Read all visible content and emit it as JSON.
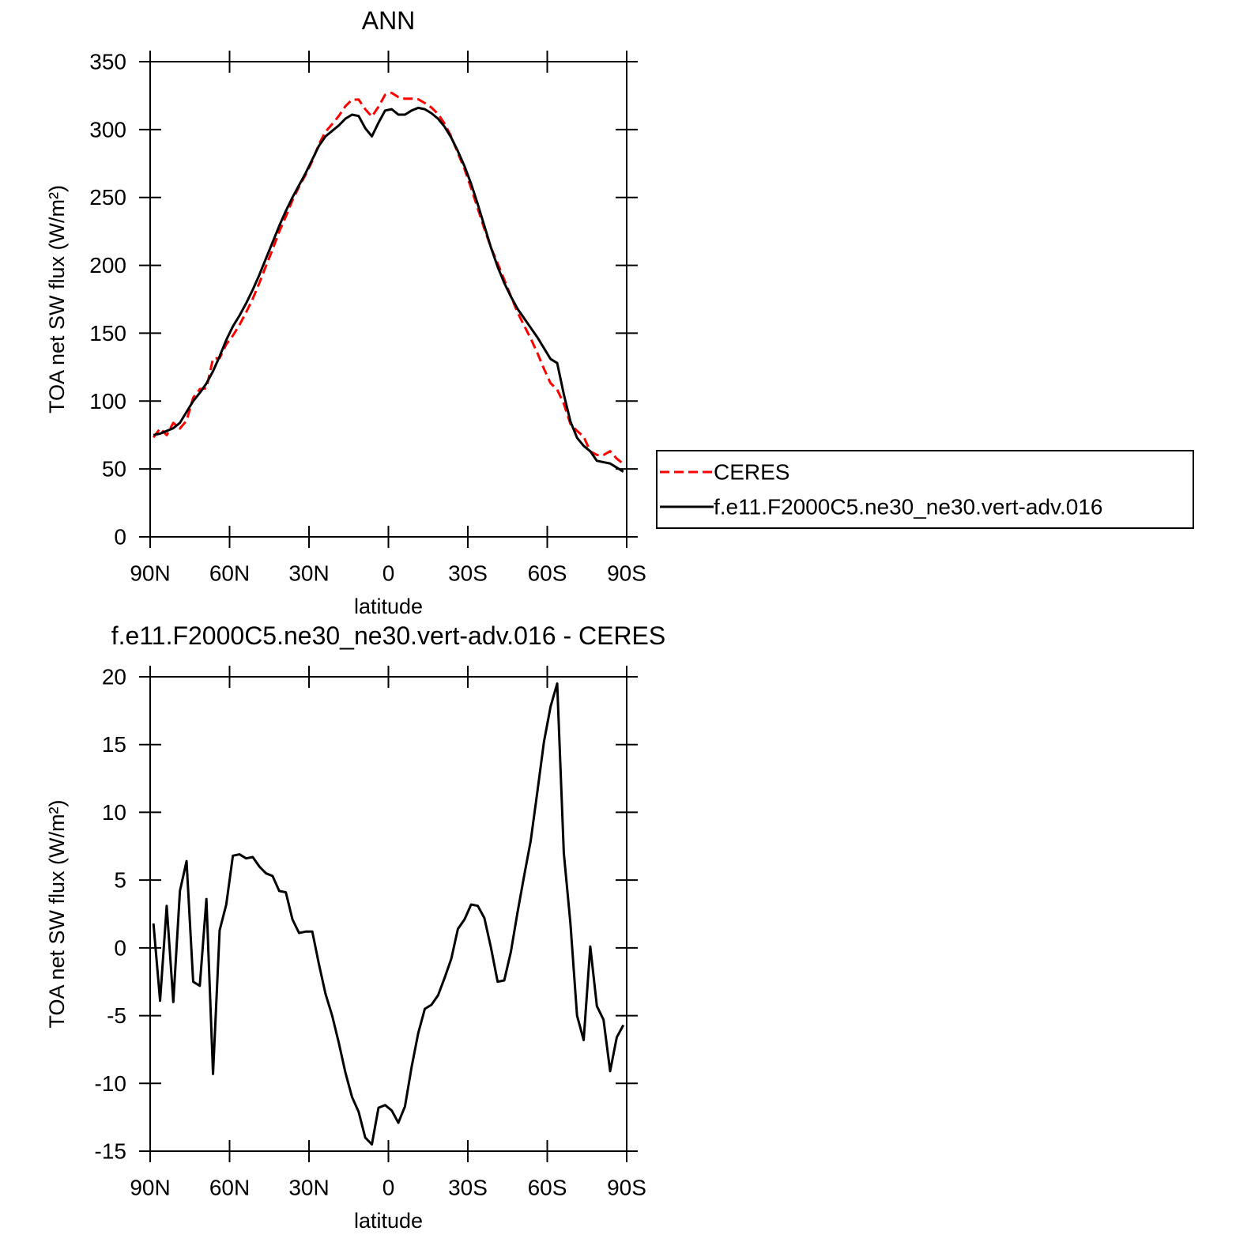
{
  "chart_data": [
    {
      "type": "line",
      "title": "ANN",
      "xlabel": "latitude",
      "ylabel": "TOA net SW flux (W/m²)",
      "x": [
        88.75,
        86.25,
        83.75,
        81.25,
        78.75,
        76.25,
        73.75,
        71.25,
        68.75,
        66.25,
        63.75,
        61.25,
        58.75,
        56.25,
        53.75,
        51.25,
        48.75,
        46.25,
        43.75,
        41.25,
        38.75,
        36.25,
        33.75,
        31.25,
        28.75,
        26.25,
        23.75,
        21.25,
        18.75,
        16.25,
        13.75,
        11.25,
        8.75,
        6.25,
        3.75,
        1.25,
        -1.25,
        -3.75,
        -6.25,
        -8.75,
        -11.25,
        -13.75,
        -16.25,
        -18.75,
        -21.25,
        -23.75,
        -26.25,
        -28.75,
        -31.25,
        -33.75,
        -36.25,
        -38.75,
        -41.25,
        -43.75,
        -46.25,
        -48.75,
        -51.25,
        -53.75,
        -56.25,
        -58.75,
        -61.25,
        -63.75,
        -66.25,
        -68.75,
        -71.25,
        -73.75,
        -76.25,
        -78.75,
        -81.25,
        -83.75,
        -86.25,
        -88.75
      ],
      "series": [
        {
          "name": "CERES",
          "color": "#ff0000",
          "style": "dashed",
          "values": [
            73.2,
            79.9,
            74.9,
            84.0,
            79.8,
            85.6,
            102.5,
            108.8,
            109.4,
            131.3,
            131.7,
            141.8,
            148.2,
            156.1,
            165.4,
            175.3,
            187.0,
            199.5,
            211.7,
            224.8,
            235.9,
            247.9,
            257.9,
            266.8,
            276.8,
            289.2,
            298.4,
            304.0,
            310.0,
            317.2,
            322.0,
            322.1,
            315.0,
            309.5,
            316.8,
            325.6,
            327.0,
            323.9,
            322.7,
            322.8,
            322.3,
            319.5,
            316.2,
            311.5,
            304.2,
            294.8,
            282.6,
            270.9,
            256.8,
            241.9,
            226.8,
            213.0,
            201.5,
            189.4,
            177.3,
            165.4,
            155.7,
            146.1,
            135.5,
            123.8,
            113.2,
            108.5,
            98.0,
            83.2,
            78.0,
            73.8,
            62.9,
            60.3,
            60.3,
            63.1,
            57.6,
            53.7
          ]
        },
        {
          "name": "f.e11.F2000C5.ne30_ne30.vert-adv.016",
          "color": "#000000",
          "style": "solid",
          "values": [
            75,
            76,
            78,
            80,
            84,
            92,
            100,
            106,
            113,
            122,
            133,
            145,
            155,
            163,
            172,
            182,
            193,
            205,
            217,
            229,
            240,
            250,
            259,
            268,
            278,
            288,
            295,
            299,
            303,
            308,
            311,
            310,
            301,
            295,
            305,
            314,
            315,
            311,
            311,
            314,
            316,
            315,
            312,
            308,
            302,
            294,
            284,
            273,
            260,
            245,
            229,
            213,
            199,
            187,
            177,
            168,
            161,
            154,
            147,
            139,
            131,
            128,
            105,
            85,
            73,
            67,
            63,
            56,
            55,
            54,
            51,
            48
          ]
        }
      ],
      "xlim": [
        90,
        -90
      ],
      "xticks": [
        {
          "value": 90,
          "label": "90N"
        },
        {
          "value": 60,
          "label": "60N"
        },
        {
          "value": 30,
          "label": "30N"
        },
        0,
        {
          "value": -30,
          "label": "30S"
        },
        {
          "value": -60,
          "label": "60S"
        },
        {
          "value": -90,
          "label": "90S"
        }
      ],
      "ylim": [
        0,
        350
      ],
      "yticks": [
        0,
        50,
        100,
        150,
        200,
        250,
        300,
        350
      ],
      "legend": "right"
    },
    {
      "type": "line",
      "title": "f.e11.F2000C5.ne30_ne30.vert-adv.016 - CERES",
      "xlabel": "latitude",
      "ylabel": "TOA net SW flux (W/m²)",
      "x": [
        88.75,
        86.25,
        83.75,
        81.25,
        78.75,
        76.25,
        73.75,
        71.25,
        68.75,
        66.25,
        63.75,
        61.25,
        58.75,
        56.25,
        53.75,
        51.25,
        48.75,
        46.25,
        43.75,
        41.25,
        38.75,
        36.25,
        33.75,
        31.25,
        28.75,
        26.25,
        23.75,
        21.25,
        18.75,
        16.25,
        13.75,
        11.25,
        8.75,
        6.25,
        3.75,
        1.25,
        -1.25,
        -3.75,
        -6.25,
        -8.75,
        -11.25,
        -13.75,
        -16.25,
        -18.75,
        -21.25,
        -23.75,
        -26.25,
        -28.75,
        -31.25,
        -33.75,
        -36.25,
        -38.75,
        -41.25,
        -43.75,
        -46.25,
        -48.75,
        -51.25,
        -53.75,
        -56.25,
        -58.75,
        -61.25,
        -63.75,
        -66.25,
        -68.75,
        -71.25,
        -73.75,
        -76.25,
        -78.75,
        -81.25,
        -83.75,
        -86.25,
        -88.75
      ],
      "color": "#000000",
      "values": [
        1.8,
        -3.9,
        3.1,
        -4.0,
        4.2,
        6.4,
        -2.5,
        -2.8,
        3.6,
        -9.3,
        1.3,
        3.2,
        6.8,
        6.9,
        6.6,
        6.7,
        6.0,
        5.5,
        5.3,
        4.2,
        4.1,
        2.1,
        1.1,
        1.2,
        1.2,
        -1.2,
        -3.4,
        -5.0,
        -7.0,
        -9.2,
        -11.0,
        -12.1,
        -14.0,
        -14.5,
        -11.8,
        -11.6,
        -12.0,
        -12.9,
        -11.7,
        -8.8,
        -6.3,
        -4.5,
        -4.2,
        -3.5,
        -2.2,
        -0.8,
        1.4,
        2.1,
        3.2,
        3.1,
        2.2,
        0.0,
        -2.5,
        -2.4,
        -0.3,
        2.6,
        5.3,
        7.9,
        11.5,
        15.2,
        17.8,
        19.5,
        7.0,
        1.8,
        -5.0,
        -6.8,
        0.1,
        -4.3,
        -5.3,
        -9.1,
        -6.6,
        -5.7
      ],
      "xlim": [
        90,
        -90
      ],
      "xticks": [
        {
          "value": 90,
          "label": "90N"
        },
        {
          "value": 60,
          "label": "60N"
        },
        {
          "value": 30,
          "label": "30N"
        },
        0,
        {
          "value": -30,
          "label": "30S"
        },
        {
          "value": -60,
          "label": "60S"
        },
        {
          "value": -90,
          "label": "90S"
        }
      ],
      "ylim": [
        -15,
        20
      ],
      "yticks": [
        -15,
        -10,
        -5,
        0,
        5,
        10,
        15,
        20
      ]
    }
  ]
}
